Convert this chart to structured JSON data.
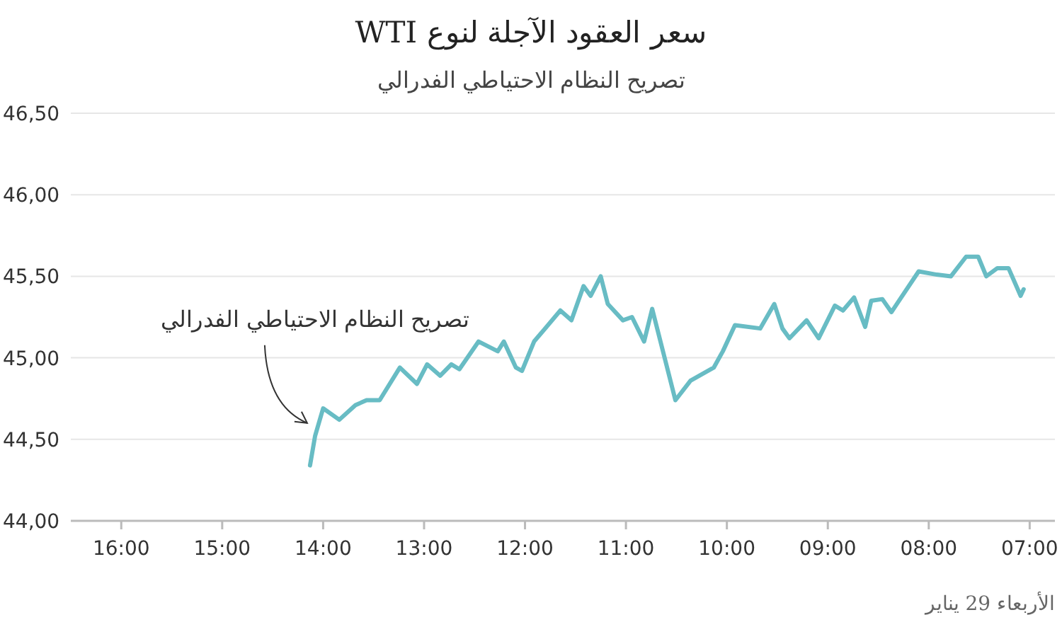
{
  "chart_data": {
    "type": "line",
    "title": "سعر العقود الآجلة لنوع WTI",
    "subtitle": "تصريح النظام الاحتياطي الفدرالي",
    "x": [
      14.13,
      14.08,
      14.0,
      13.84,
      13.68,
      13.57,
      13.44,
      13.24,
      13.07,
      12.97,
      12.84,
      12.73,
      12.65,
      12.46,
      12.27,
      12.21,
      12.09,
      12.03,
      11.91,
      11.65,
      11.54,
      11.42,
      11.35,
      11.25,
      11.18,
      11.03,
      10.94,
      10.82,
      10.74,
      10.51,
      10.36,
      10.13,
      10.04,
      9.92,
      9.67,
      9.53,
      9.45,
      9.38,
      9.21,
      9.09,
      8.93,
      8.85,
      8.74,
      8.63,
      8.57,
      8.46,
      8.37,
      8.1,
      7.92,
      7.78,
      7.63,
      7.51,
      7.43,
      7.32,
      7.21,
      7.09,
      7.06
    ],
    "series": [
      {
        "color": "#68bcc4",
        "values": [
          44.34,
          44.52,
          44.69,
          44.62,
          44.71,
          44.74,
          44.74,
          44.94,
          44.84,
          44.96,
          44.89,
          44.96,
          44.93,
          45.1,
          45.04,
          45.1,
          44.94,
          44.92,
          45.1,
          45.29,
          45.23,
          45.44,
          45.38,
          45.5,
          45.33,
          45.23,
          45.25,
          45.1,
          45.3,
          44.74,
          44.86,
          44.94,
          45.04,
          45.2,
          45.18,
          45.33,
          45.18,
          45.12,
          45.23,
          45.12,
          45.32,
          45.29,
          45.37,
          45.19,
          45.35,
          45.36,
          45.28,
          45.53,
          45.51,
          45.5,
          45.62,
          45.62,
          45.5,
          45.55,
          45.55,
          45.38,
          45.42
        ]
      }
    ],
    "xlim": [
      16.5,
      6.75
    ],
    "xticks": [
      {
        "value": 16,
        "label": "16:00"
      },
      {
        "value": 15,
        "label": "15:00"
      },
      {
        "value": 14,
        "label": "14:00"
      },
      {
        "value": 13,
        "label": "13:00"
      },
      {
        "value": 12,
        "label": "12:00"
      },
      {
        "value": 11,
        "label": "11:00"
      },
      {
        "value": 10,
        "label": "10:00"
      },
      {
        "value": 9,
        "label": "09:00"
      },
      {
        "value": 8,
        "label": "08:00"
      },
      {
        "value": 7,
        "label": "07:00"
      }
    ],
    "ylim": [
      44,
      46.5
    ],
    "yticks": [
      {
        "value": 44,
        "label": "44,00"
      },
      {
        "value": 44.5,
        "label": "44,50"
      },
      {
        "value": 45,
        "label": "45,00"
      },
      {
        "value": 45.5,
        "label": "45,50"
      },
      {
        "value": 46,
        "label": "46,00"
      },
      {
        "value": 46.5,
        "label": "46,50"
      }
    ],
    "grid": "y",
    "line_style": "solid",
    "annotations": [
      {
        "text": "تصريح النظام الاحتياطي الفدرالي",
        "x": 14.13,
        "y": 44.6
      },
      "الأربعاء 29 يناير"
    ]
  }
}
